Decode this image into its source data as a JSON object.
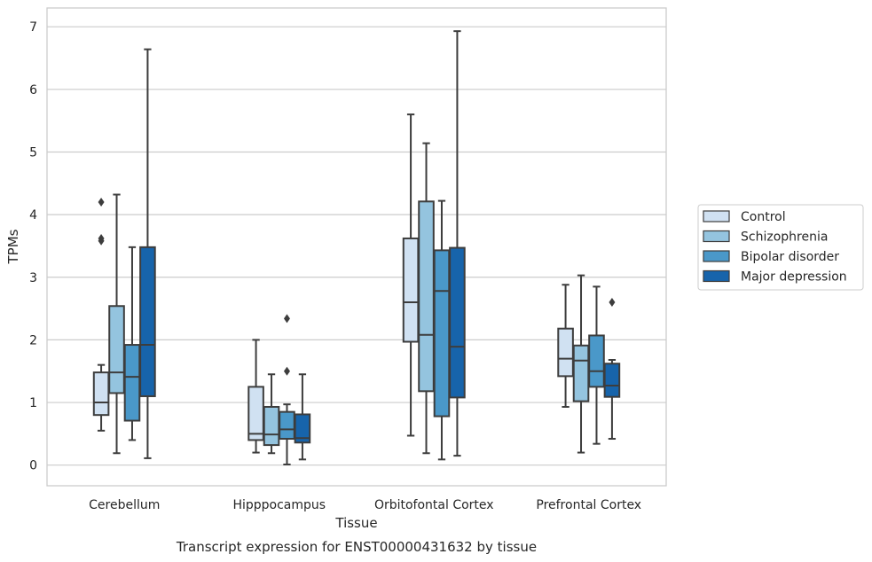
{
  "chart_data": {
    "type": "box",
    "title": "",
    "caption": "Transcript expression for ENST00000431632 by tissue",
    "xlabel": "Tissue",
    "ylabel": "TPMs",
    "ylim": [
      -0.33,
      7.3
    ],
    "yticks": [
      0,
      1,
      2,
      3,
      4,
      5,
      6,
      7
    ],
    "grid": "horizontal",
    "legend_position": "right",
    "categories": [
      "Cerebellum",
      "Hipppocampus",
      "Orbitofontal Cortex",
      "Prefrontal Cortex"
    ],
    "series": [
      {
        "name": "Control",
        "color": "#d0e1f2",
        "boxes": [
          {
            "whislo": 0.55,
            "q1": 0.8,
            "med": 1.0,
            "q3": 1.48,
            "whishi": 1.6,
            "fliers": [
              4.2,
              3.62,
              3.58
            ]
          },
          {
            "whislo": 0.2,
            "q1": 0.4,
            "med": 0.5,
            "q3": 1.25,
            "whishi": 2.0,
            "fliers": []
          },
          {
            "whislo": 0.47,
            "q1": 1.97,
            "med": 2.6,
            "q3": 3.62,
            "whishi": 5.6,
            "fliers": []
          },
          {
            "whislo": 0.93,
            "q1": 1.42,
            "med": 1.7,
            "q3": 2.18,
            "whishi": 2.88,
            "fliers": []
          }
        ]
      },
      {
        "name": "Schizophrenia",
        "color": "#94c4df",
        "boxes": [
          {
            "whislo": 0.19,
            "q1": 1.15,
            "med": 1.48,
            "q3": 2.54,
            "whishi": 4.32,
            "fliers": []
          },
          {
            "whislo": 0.19,
            "q1": 0.32,
            "med": 0.49,
            "q3": 0.93,
            "whishi": 1.45,
            "fliers": []
          },
          {
            "whislo": 0.19,
            "q1": 1.18,
            "med": 2.08,
            "q3": 4.21,
            "whishi": 5.14,
            "fliers": []
          },
          {
            "whislo": 0.2,
            "q1": 1.02,
            "med": 1.67,
            "q3": 1.91,
            "whishi": 3.03,
            "fliers": []
          }
        ]
      },
      {
        "name": "Bipolar disorder",
        "color": "#4a98c9",
        "boxes": [
          {
            "whislo": 0.4,
            "q1": 0.71,
            "med": 1.41,
            "q3": 1.92,
            "whishi": 3.48,
            "fliers": []
          },
          {
            "whislo": 0.01,
            "q1": 0.42,
            "med": 0.57,
            "q3": 0.85,
            "whishi": 0.97,
            "fliers": [
              2.34,
              1.5
            ]
          },
          {
            "whislo": 0.09,
            "q1": 0.78,
            "med": 2.78,
            "q3": 3.43,
            "whishi": 4.22,
            "fliers": []
          },
          {
            "whislo": 0.34,
            "q1": 1.25,
            "med": 1.5,
            "q3": 2.07,
            "whishi": 2.85,
            "fliers": []
          }
        ]
      },
      {
        "name": "Major depression",
        "color": "#1764ab",
        "boxes": [
          {
            "whislo": 0.11,
            "q1": 1.1,
            "med": 1.92,
            "q3": 3.48,
            "whishi": 6.64,
            "fliers": []
          },
          {
            "whislo": 0.09,
            "q1": 0.36,
            "med": 0.43,
            "q3": 0.81,
            "whishi": 1.45,
            "fliers": []
          },
          {
            "whislo": 0.15,
            "q1": 1.08,
            "med": 1.89,
            "q3": 3.47,
            "whishi": 6.93,
            "fliers": []
          },
          {
            "whislo": 0.42,
            "q1": 1.09,
            "med": 1.27,
            "q3": 1.62,
            "whishi": 1.68,
            "fliers": [
              2.6
            ]
          }
        ]
      }
    ]
  }
}
